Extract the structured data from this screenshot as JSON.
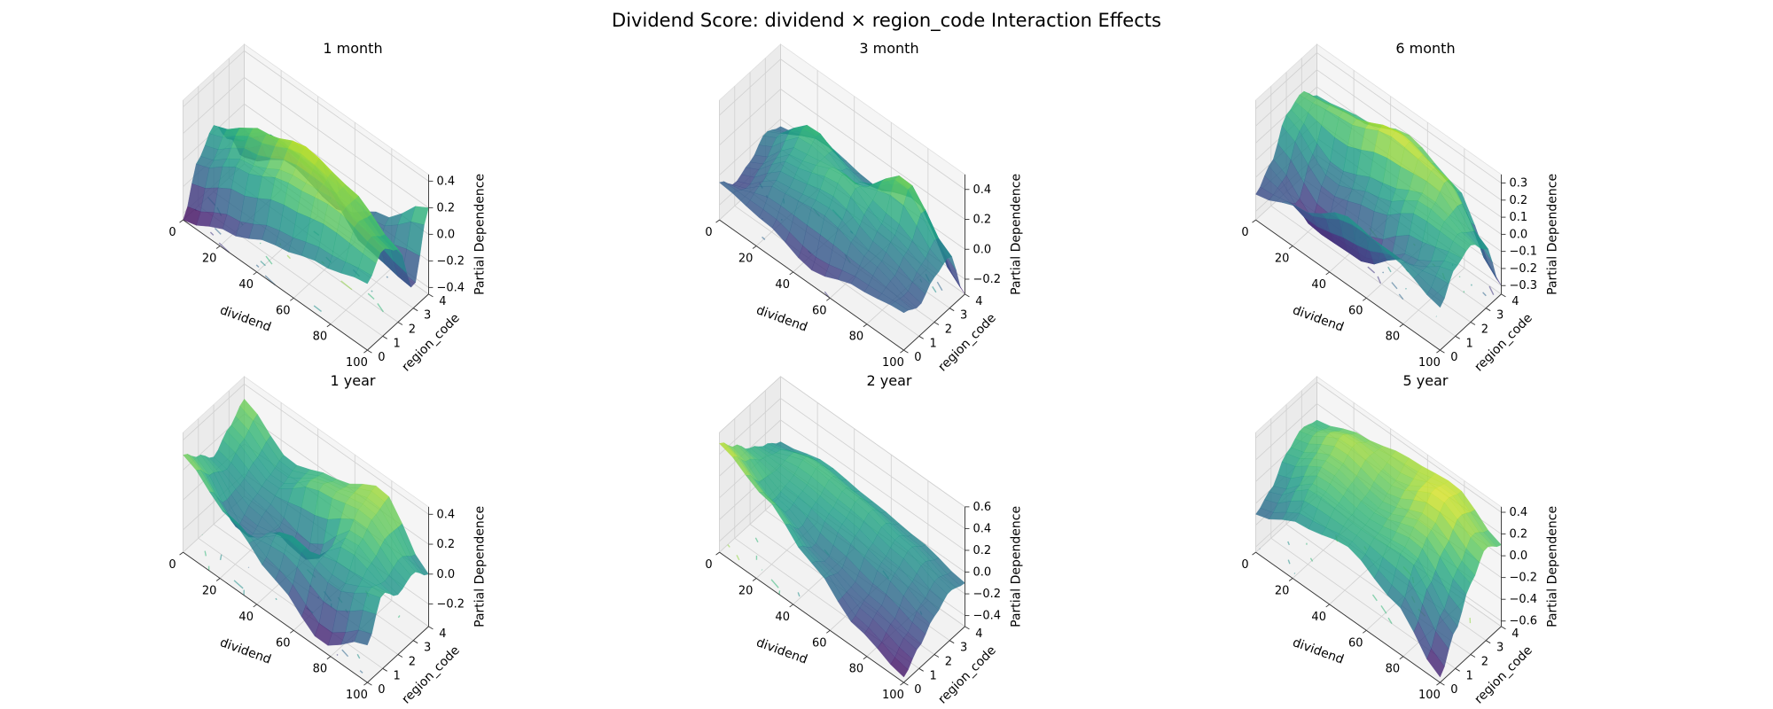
{
  "figure": {
    "title": "Dividend Score: dividend × region_code Interaction Effects"
  },
  "chart_data": [
    {
      "type": "surface3d",
      "title": "1 month",
      "xlabel": "dividend",
      "ylabel": "region_code",
      "zlabel": "Partial Dependence",
      "xticks": [
        "0",
        "20",
        "40",
        "60",
        "80",
        "100"
      ],
      "yticks": [
        "0",
        "1",
        "2",
        "3",
        "4"
      ],
      "zticks": [
        "−0.4",
        "−0.2",
        "0.0",
        "0.2",
        "0.4"
      ],
      "xlim": [
        0,
        100
      ],
      "ylim": [
        0,
        4
      ],
      "zlim": [
        -0.45,
        0.45
      ],
      "colormap": "viridis",
      "x": [
        0,
        25,
        50,
        75,
        100
      ],
      "y": [
        0,
        1,
        2,
        3,
        4
      ],
      "z": [
        [
          -0.45,
          -0.3,
          -0.15,
          -0.05,
          0.05
        ],
        [
          -0.1,
          0.1,
          0.25,
          0.3,
          0.2
        ],
        [
          0.05,
          0.25,
          0.38,
          0.3,
          0.1
        ],
        [
          -0.15,
          0.1,
          0.05,
          -0.25,
          -0.3
        ],
        [
          -0.4,
          -0.2,
          -0.3,
          -0.1,
          0.2
        ]
      ]
    },
    {
      "type": "surface3d",
      "title": "3 month",
      "xlabel": "dividend",
      "ylabel": "region_code",
      "zlabel": "Partial Dependence",
      "xticks": [
        "0",
        "20",
        "40",
        "60",
        "80",
        "100"
      ],
      "yticks": [
        "0",
        "1",
        "2",
        "3",
        "4"
      ],
      "zticks": [
        "−0.2",
        "0.0",
        "0.2",
        "0.4"
      ],
      "xlim": [
        0,
        100
      ],
      "ylim": [
        0,
        4
      ],
      "zlim": [
        -0.3,
        0.5
      ],
      "colormap": "viridis",
      "x": [
        0,
        25,
        50,
        75,
        100
      ],
      "y": [
        0,
        1,
        2,
        3,
        4
      ],
      "z": [
        [
          -0.05,
          -0.1,
          -0.2,
          -0.1,
          -0.05
        ],
        [
          -0.15,
          0.05,
          0.1,
          0.0,
          -0.1
        ],
        [
          -0.1,
          0.15,
          0.25,
          0.1,
          0.0
        ],
        [
          0.0,
          0.25,
          0.1,
          0.35,
          0.05
        ],
        [
          -0.05,
          0.05,
          0.0,
          0.1,
          -0.3
        ]
      ]
    },
    {
      "type": "surface3d",
      "title": "6 month",
      "xlabel": "dividend",
      "ylabel": "region_code",
      "zlabel": "Partial Dependence",
      "xticks": [
        "0",
        "20",
        "40",
        "60",
        "80",
        "100"
      ],
      "yticks": [
        "0",
        "1",
        "2",
        "3",
        "4"
      ],
      "zticks": [
        "−0.3",
        "−0.2",
        "−0.1",
        "0.0",
        "0.1",
        "0.2",
        "0.3"
      ],
      "xlim": [
        0,
        100
      ],
      "ylim": [
        0,
        4
      ],
      "zlim": [
        -0.35,
        0.35
      ],
      "colormap": "viridis",
      "x": [
        0,
        25,
        50,
        75,
        100
      ],
      "y": [
        0,
        1,
        2,
        3,
        4
      ],
      "z": [
        [
          -0.2,
          -0.1,
          0.05,
          0.0,
          -0.1
        ],
        [
          -0.1,
          -0.3,
          -0.3,
          -0.1,
          0.05
        ],
        [
          0.1,
          -0.1,
          0.0,
          0.15,
          0.1
        ],
        [
          0.15,
          0.2,
          0.3,
          0.25,
          0.0
        ],
        [
          0.05,
          0.1,
          0.2,
          0.1,
          -0.3
        ]
      ]
    },
    {
      "type": "surface3d",
      "title": "1 year",
      "xlabel": "dividend",
      "ylabel": "region_code",
      "zlabel": "Partial Dependence",
      "xticks": [
        "0",
        "20",
        "40",
        "60",
        "80",
        "100"
      ],
      "yticks": [
        "0",
        "1",
        "2",
        "3",
        "4"
      ],
      "zticks": [
        "−0.2",
        "0.0",
        "0.2",
        "0.4"
      ],
      "xlim": [
        0,
        100
      ],
      "ylim": [
        0,
        4
      ],
      "zlim": [
        -0.35,
        0.45
      ],
      "colormap": "viridis",
      "x": [
        0,
        25,
        50,
        75,
        100
      ],
      "y": [
        0,
        1,
        2,
        3,
        4
      ],
      "z": [
        [
          0.3,
          0.1,
          -0.1,
          -0.3,
          -0.1
        ],
        [
          0.2,
          -0.1,
          0.1,
          0.0,
          0.15
        ],
        [
          0.1,
          0.0,
          -0.15,
          0.2,
          0.05
        ],
        [
          0.2,
          0.05,
          0.25,
          0.3,
          0.1
        ],
        [
          0.3,
          0.1,
          0.2,
          0.35,
          0.0
        ]
      ]
    },
    {
      "type": "surface3d",
      "title": "2 year",
      "xlabel": "dividend",
      "ylabel": "region_code",
      "zlabel": "Partial Dependence",
      "xticks": [
        "0",
        "20",
        "40",
        "60",
        "80",
        "100"
      ],
      "yticks": [
        "0",
        "1",
        "2",
        "3",
        "4"
      ],
      "zticks": [
        "−0.4",
        "−0.2",
        "0.0",
        "0.2",
        "0.4",
        "0.6"
      ],
      "xlim": [
        0,
        100
      ],
      "ylim": [
        0,
        4
      ],
      "zlim": [
        -0.5,
        0.6
      ],
      "colormap": "viridis",
      "x": [
        0,
        25,
        50,
        75,
        100
      ],
      "y": [
        0,
        1,
        2,
        3,
        4
      ],
      "z": [
        [
          0.5,
          0.3,
          0.0,
          -0.3,
          -0.45
        ],
        [
          0.35,
          0.1,
          -0.1,
          -0.2,
          -0.3
        ],
        [
          0.2,
          0.15,
          0.1,
          0.0,
          -0.15
        ],
        [
          0.1,
          0.25,
          0.2,
          0.1,
          -0.05
        ],
        [
          0.0,
          0.1,
          0.05,
          0.0,
          -0.1
        ]
      ]
    },
    {
      "type": "surface3d",
      "title": "5 year",
      "xlabel": "dividend",
      "ylabel": "region_code",
      "zlabel": "Partial Dependence",
      "xticks": [
        "0",
        "20",
        "40",
        "60",
        "80",
        "100"
      ],
      "yticks": [
        "0",
        "1",
        "2",
        "3",
        "4"
      ],
      "zticks": [
        "−0.6",
        "−0.4",
        "−0.2",
        "0.0",
        "0.2",
        "0.4"
      ],
      "xlim": [
        0,
        100
      ],
      "ylim": [
        0,
        4
      ],
      "zlim": [
        -0.65,
        0.45
      ],
      "colormap": "viridis",
      "x": [
        0,
        25,
        50,
        75,
        100
      ],
      "y": [
        0,
        1,
        2,
        3,
        4
      ],
      "z": [
        [
          -0.3,
          -0.1,
          0.0,
          -0.2,
          -0.6
        ],
        [
          -0.2,
          0.1,
          0.05,
          0.1,
          -0.3
        ],
        [
          0.0,
          0.2,
          0.1,
          0.25,
          0.0
        ],
        [
          0.1,
          0.3,
          0.2,
          0.4,
          0.2
        ],
        [
          0.05,
          0.2,
          0.3,
          0.35,
          0.1
        ]
      ]
    }
  ]
}
